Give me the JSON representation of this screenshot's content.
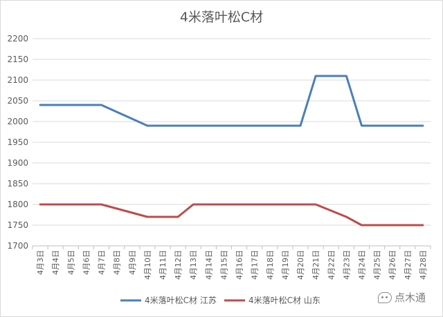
{
  "chart_data": {
    "type": "line",
    "title": "4米落叶松C材",
    "xlabel": "",
    "ylabel": "",
    "categories": [
      "4月3日",
      "4月4日",
      "4月5日",
      "4月6日",
      "4月7日",
      "4月8日",
      "4月9日",
      "4月10日",
      "4月11日",
      "4月12日",
      "4月13日",
      "4月14日",
      "4月15日",
      "4月16日",
      "4月17日",
      "4月18日",
      "4月19日",
      "4月20日",
      "4月21日",
      "4月22日",
      "4月23日",
      "4月24日",
      "4月25日",
      "4月26日",
      "4月27日",
      "4月28日"
    ],
    "ylim": [
      1700,
      2200
    ],
    "yticks": [
      1700,
      1750,
      1800,
      1850,
      1900,
      1950,
      2000,
      2050,
      2100,
      2150,
      2200
    ],
    "grid": true,
    "legend_position": "bottom",
    "series": [
      {
        "name": "4米落叶松C材 江苏",
        "color": "#4a7ebb",
        "values": [
          2040,
          2040,
          2040,
          2040,
          2040,
          2023.3,
          2006.7,
          1990,
          1990,
          1990,
          1990,
          1990,
          1990,
          1990,
          1990,
          1990,
          1990,
          1990,
          2110,
          2110,
          2110,
          1990,
          1990,
          1990,
          1990,
          1990
        ]
      },
      {
        "name": "4米落叶松C材 山东",
        "color": "#be4b48",
        "values": [
          1800,
          1800,
          1800,
          1800,
          1800,
          1790,
          1780,
          1770,
          1770,
          1770,
          1800,
          1800,
          1800,
          1800,
          1800,
          1800,
          1800,
          1800,
          1800,
          1785,
          1770,
          1750,
          1750,
          1750,
          1750,
          1750
        ]
      }
    ]
  },
  "watermark": {
    "text": "点木通",
    "icon": "wechat-icon"
  }
}
